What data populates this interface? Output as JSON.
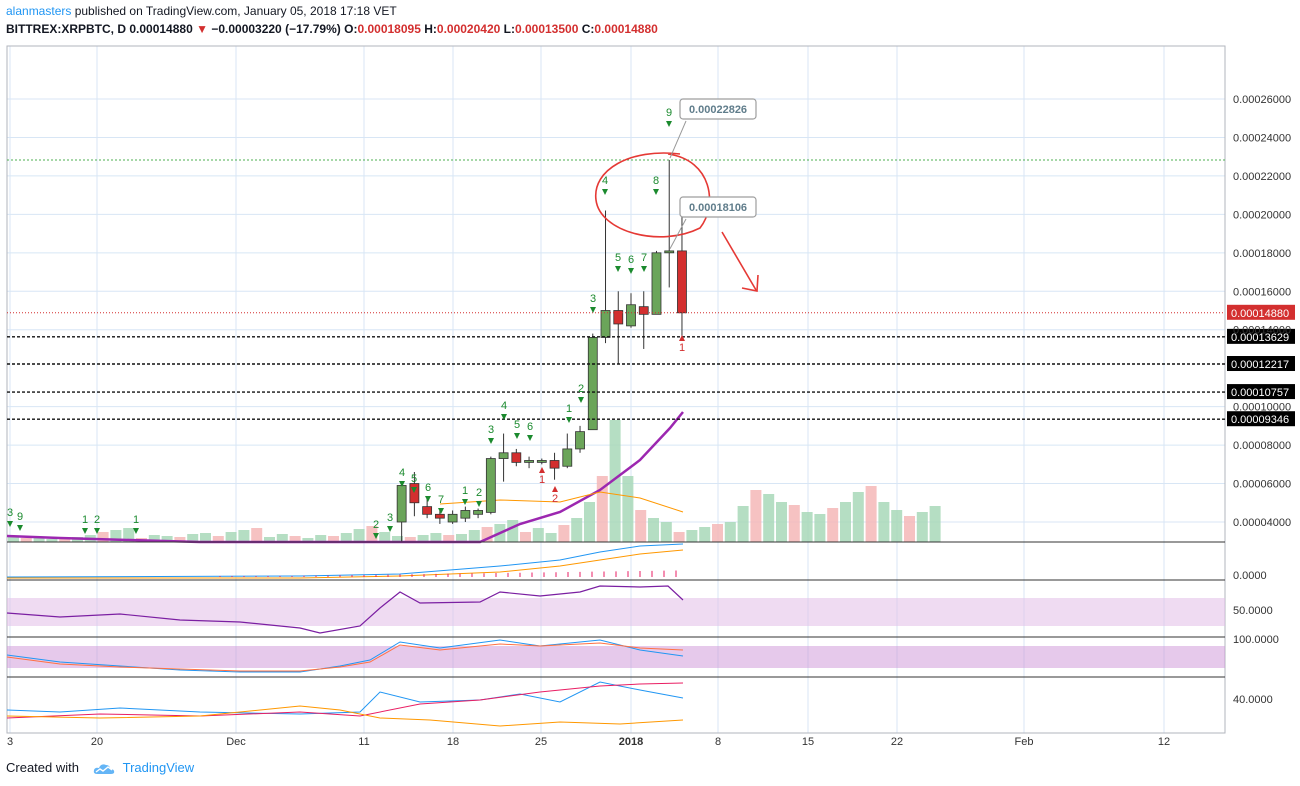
{
  "header": {
    "author": "alanmasters",
    "published": " published on TradingView.com, January 05, 2018 17:18 VET",
    "symbol": "BITTREX:XRPBTC, D",
    "last": "0.00014880",
    "change": "−0.00003220 (−17.79%)",
    "open_label": "O:",
    "open": "0.00018095",
    "high_label": "H:",
    "high": "0.00020420",
    "low_label": "L:",
    "low": "0.00013500",
    "close_label": "C:",
    "close": "0.00014880"
  },
  "footer": {
    "created_with": "Created with",
    "brand": "TradingView"
  },
  "colors": {
    "up": "#6ba55a",
    "down": "#d32f2f",
    "volume_up": "#a8d8b9",
    "volume_down": "#f4b7b7",
    "ma_purple": "#9c27b0",
    "grid": "#d8e6f5",
    "callout_red": "#e53935"
  },
  "chart_data": {
    "type": "candlestick",
    "y_ticks": [
      "0.00004000",
      "0.00006000",
      "0.00008000",
      "0.00010000",
      "0.00014000",
      "0.00016000",
      "0.00018000",
      "0.00020000",
      "0.00022000",
      "0.00024000",
      "0.00026000"
    ],
    "y_range": [
      3e-05,
      0.00027
    ],
    "x_ticks": [
      "3",
      "20",
      "Dec",
      "11",
      "18",
      "25",
      "2018",
      "8",
      "15",
      "22",
      "Feb",
      "12"
    ],
    "x_range_days": [
      "2017-11-03",
      "2018-02-16"
    ],
    "price_labels": [
      {
        "value": 0.0001488,
        "text": "0.00014880",
        "style": "last"
      },
      {
        "value": 0.00013629,
        "text": "0.00013629",
        "style": "level"
      },
      {
        "value": 0.00012217,
        "text": "0.00012217",
        "style": "level"
      },
      {
        "value": 0.00010757,
        "text": "0.00010757",
        "style": "level"
      },
      {
        "value": 9.346e-05,
        "text": "0.00009346",
        "style": "level"
      }
    ],
    "green_line": 0.00022826,
    "callouts": [
      {
        "value": 0.00022826,
        "text": "0.00022826"
      },
      {
        "value": 0.00018106,
        "text": "0.00018106"
      }
    ],
    "candles": [
      {
        "d": "12-14",
        "o": 4e-05,
        "h": 6e-05,
        "l": 3e-05,
        "c": 5.9e-05
      },
      {
        "d": "12-15",
        "o": 6e-05,
        "h": 6.6e-05,
        "l": 4.3e-05,
        "c": 5e-05
      },
      {
        "d": "12-16",
        "o": 4.8e-05,
        "h": 5.2e-05,
        "l": 4.2e-05,
        "c": 4.4e-05
      },
      {
        "d": "12-17",
        "o": 4.4e-05,
        "h": 4.6e-05,
        "l": 3.9e-05,
        "c": 4.2e-05
      },
      {
        "d": "12-18",
        "o": 4e-05,
        "h": 4.6e-05,
        "l": 3.9e-05,
        "c": 4.4e-05
      },
      {
        "d": "12-19",
        "o": 4.2e-05,
        "h": 4.8e-05,
        "l": 4e-05,
        "c": 4.6e-05
      },
      {
        "d": "12-20",
        "o": 4.4e-05,
        "h": 4.7e-05,
        "l": 4.2e-05,
        "c": 4.6e-05
      },
      {
        "d": "12-21",
        "o": 4.5e-05,
        "h": 7.4e-05,
        "l": 4.4e-05,
        "c": 7.3e-05
      },
      {
        "d": "12-22",
        "o": 7.3e-05,
        "h": 8.6e-05,
        "l": 6.1e-05,
        "c": 7.6e-05
      },
      {
        "d": "12-23",
        "o": 7.6e-05,
        "h": 7.8e-05,
        "l": 6.9e-05,
        "c": 7.1e-05
      },
      {
        "d": "12-24",
        "o": 7.1e-05,
        "h": 7.4e-05,
        "l": 6.8e-05,
        "c": 7.2e-05
      },
      {
        "d": "12-25",
        "o": 7.1e-05,
        "h": 7.3e-05,
        "l": 7e-05,
        "c": 7.2e-05
      },
      {
        "d": "12-26",
        "o": 7.2e-05,
        "h": 7.6e-05,
        "l": 6.2e-05,
        "c": 6.8e-05
      },
      {
        "d": "12-27",
        "o": 6.9e-05,
        "h": 8.6e-05,
        "l": 6.8e-05,
        "c": 7.8e-05
      },
      {
        "d": "12-28",
        "o": 7.8e-05,
        "h": 9e-05,
        "l": 7.6e-05,
        "c": 8.7e-05
      },
      {
        "d": "12-29",
        "o": 8.8e-05,
        "h": 0.000138,
        "l": 8.8e-05,
        "c": 0.000136
      },
      {
        "d": "12-30",
        "o": 0.000136,
        "h": 0.000202,
        "l": 0.000133,
        "c": 0.00015
      },
      {
        "d": "12-31",
        "o": 0.00015,
        "h": 0.00016,
        "l": 0.000122,
        "c": 0.000143
      },
      {
        "d": "01-01",
        "o": 0.000142,
        "h": 0.000159,
        "l": 0.000141,
        "c": 0.000153
      },
      {
        "d": "01-02",
        "o": 0.000152,
        "h": 0.00016,
        "l": 0.00013,
        "c": 0.000148
      },
      {
        "d": "01-03",
        "o": 0.000148,
        "h": 0.000181,
        "l": 0.000148,
        "c": 0.00018
      },
      {
        "d": "01-04",
        "o": 0.00018,
        "h": 0.0002283,
        "l": 0.000162,
        "c": 0.000181
      },
      {
        "d": "01-05",
        "o": 0.000181,
        "h": 0.000204,
        "l": 0.000135,
        "c": 0.0001488
      }
    ],
    "sequential_labels": [
      {
        "t": "3",
        "x": 10,
        "y": 516
      },
      {
        "t": "9",
        "x": 20,
        "y": 520
      },
      {
        "t": "1",
        "x": 85,
        "y": 523
      },
      {
        "t": "2",
        "x": 97,
        "y": 523
      },
      {
        "t": "1",
        "x": 136,
        "y": 523
      },
      {
        "t": "2",
        "x": 376,
        "y": 528
      },
      {
        "t": "3",
        "x": 390,
        "y": 521
      },
      {
        "t": "4",
        "x": 402,
        "y": 476
      },
      {
        "t": "5",
        "x": 414,
        "y": 482
      },
      {
        "t": "6",
        "x": 428,
        "y": 491
      },
      {
        "t": "7",
        "x": 441,
        "y": 503
      },
      {
        "t": "1",
        "x": 465,
        "y": 494
      },
      {
        "t": "2",
        "x": 479,
        "y": 496
      },
      {
        "t": "3",
        "x": 491,
        "y": 433
      },
      {
        "t": "4",
        "x": 504,
        "y": 409
      },
      {
        "t": "5",
        "x": 517,
        "y": 428
      },
      {
        "t": "6",
        "x": 530,
        "y": 430
      },
      {
        "t": "1",
        "x": 569,
        "y": 412
      },
      {
        "t": "2",
        "x": 581,
        "y": 392
      },
      {
        "t": "3",
        "x": 593,
        "y": 302
      },
      {
        "t": "4",
        "x": 605,
        "y": 184
      },
      {
        "t": "5",
        "x": 618,
        "y": 261
      },
      {
        "t": "6",
        "x": 631,
        "y": 263
      },
      {
        "t": "7",
        "x": 644,
        "y": 261
      },
      {
        "t": "8",
        "x": 656,
        "y": 184
      },
      {
        "t": "9",
        "x": 669,
        "y": 116
      },
      {
        "t": "1",
        "x": 542,
        "y": 483,
        "red": true
      },
      {
        "t": "2",
        "x": 555,
        "y": 502,
        "red": true
      },
      {
        "t": "1",
        "x": 682,
        "y": 351,
        "red": true
      }
    ],
    "indicator_ticks": [
      "0.0000",
      "50.0000",
      "100.0000",
      "40.0000"
    ]
  }
}
